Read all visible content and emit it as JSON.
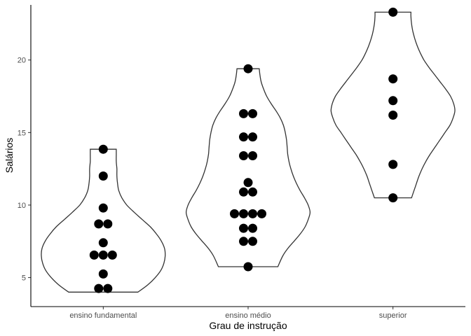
{
  "chart_data": {
    "type": "violin+dotplot",
    "xlabel": "Grau de instrução",
    "ylabel": "Salários",
    "ylim": [
      3,
      23.8
    ],
    "yticks": [
      5,
      10,
      15,
      20
    ],
    "grid": false,
    "categories": [
      "ensino fundamental",
      "ensino médio",
      "superior"
    ],
    "groups": [
      {
        "category": "ensino fundamental",
        "points": [
          4.25,
          4.25,
          5.25,
          6.55,
          6.55,
          6.55,
          7.4,
          8.7,
          8.7,
          9.8,
          12.0,
          13.85
        ],
        "violin": {
          "y": [
            4.0,
            4.5,
            5.0,
            5.5,
            6.0,
            6.5,
            7.0,
            7.5,
            8.0,
            8.5,
            9.0,
            9.5,
            10.0,
            10.5,
            11.0,
            11.5,
            12.0,
            12.5,
            13.0,
            13.5,
            13.85
          ],
          "width": [
            0.56,
            0.72,
            0.84,
            0.93,
            0.98,
            1.0,
            0.99,
            0.94,
            0.86,
            0.76,
            0.63,
            0.5,
            0.38,
            0.3,
            0.25,
            0.23,
            0.22,
            0.22,
            0.21,
            0.21,
            0.21
          ]
        }
      },
      {
        "category": "ensino médio",
        "points": [
          5.75,
          7.5,
          7.5,
          8.4,
          8.4,
          9.4,
          9.4,
          9.4,
          9.4,
          10.9,
          10.9,
          11.55,
          13.4,
          13.4,
          14.7,
          14.7,
          16.3,
          16.3,
          19.4
        ],
        "violin": {
          "y": [
            5.75,
            6.5,
            7.0,
            7.5,
            8.0,
            8.5,
            9.0,
            9.5,
            10.0,
            10.5,
            11.0,
            11.5,
            12.0,
            12.5,
            13.0,
            13.5,
            14.0,
            14.5,
            15.0,
            15.5,
            16.0,
            16.5,
            17.0,
            17.5,
            18.0,
            18.5,
            19.0,
            19.4
          ],
          "width": [
            0.48,
            0.56,
            0.64,
            0.74,
            0.84,
            0.92,
            0.97,
            1.0,
            0.97,
            0.91,
            0.84,
            0.78,
            0.73,
            0.69,
            0.66,
            0.64,
            0.63,
            0.62,
            0.6,
            0.57,
            0.52,
            0.45,
            0.37,
            0.3,
            0.25,
            0.21,
            0.19,
            0.18
          ]
        }
      },
      {
        "category": "superior",
        "points": [
          10.5,
          12.8,
          16.2,
          17.2,
          18.7,
          23.3
        ],
        "violin": {
          "y": [
            10.5,
            11.0,
            11.5,
            12.0,
            12.5,
            13.0,
            13.5,
            14.0,
            14.5,
            15.0,
            15.5,
            16.0,
            16.5,
            17.0,
            17.5,
            18.0,
            18.5,
            19.0,
            19.5,
            20.0,
            20.5,
            21.0,
            21.5,
            22.0,
            22.5,
            23.0,
            23.3
          ],
          "width": [
            0.3,
            0.34,
            0.38,
            0.42,
            0.47,
            0.53,
            0.6,
            0.68,
            0.76,
            0.84,
            0.92,
            0.97,
            1.0,
            0.98,
            0.93,
            0.85,
            0.76,
            0.67,
            0.58,
            0.5,
            0.44,
            0.39,
            0.35,
            0.32,
            0.3,
            0.29,
            0.29
          ]
        }
      }
    ]
  }
}
